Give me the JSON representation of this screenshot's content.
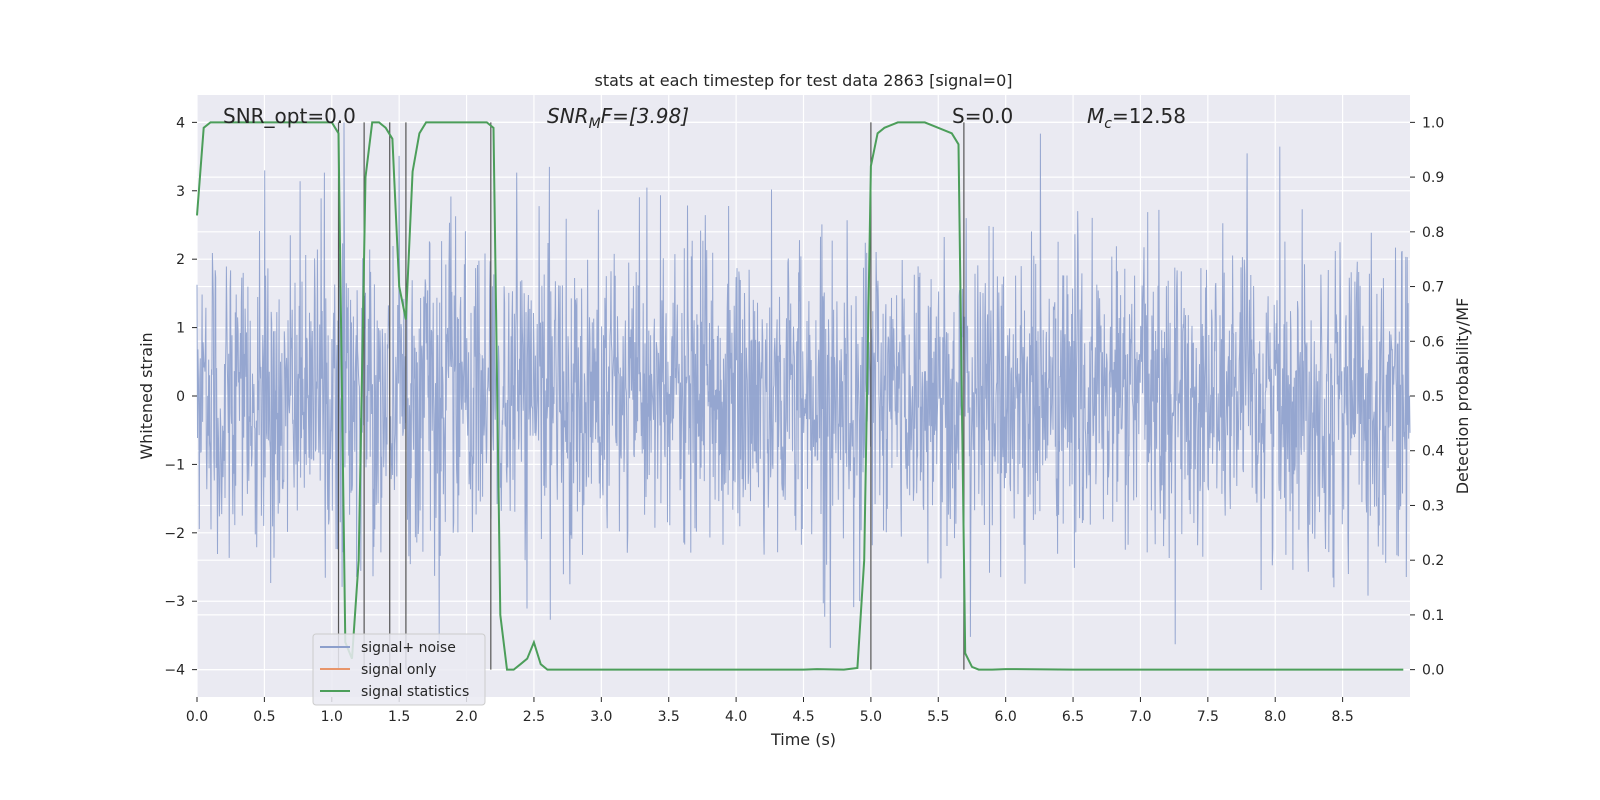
{
  "chart_data": {
    "type": "line",
    "title": "stats at each timestep for test data 2863 [signal=0]",
    "xlabel": "Time (s)",
    "ylabel_left": "Whitened strain",
    "ylabel_right": "Detection probability/MF",
    "xlim": [
      0.0,
      9.0
    ],
    "ylim_left": [
      -4.4,
      4.4
    ],
    "ylim_right": [
      -0.05,
      1.05
    ],
    "x_ticks": [
      "0.0",
      "0.5",
      "1.0",
      "1.5",
      "2.0",
      "2.5",
      "3.0",
      "3.5",
      "4.0",
      "4.5",
      "5.0",
      "5.5",
      "6.0",
      "6.5",
      "7.0",
      "7.5",
      "8.0",
      "8.5"
    ],
    "x_tick_values": [
      0.0,
      0.5,
      1.0,
      1.5,
      2.0,
      2.5,
      3.0,
      3.5,
      4.0,
      4.5,
      5.0,
      5.5,
      6.0,
      6.5,
      7.0,
      7.5,
      8.0,
      8.5
    ],
    "left_ticks": [
      "−4",
      "−3",
      "−2",
      "−1",
      "0",
      "1",
      "2",
      "3",
      "4"
    ],
    "left_tick_values": [
      -4,
      -3,
      -2,
      -1,
      0,
      1,
      2,
      3,
      4
    ],
    "right_ticks": [
      "0.0",
      "0.1",
      "0.2",
      "0.3",
      "0.4",
      "0.5",
      "0.6",
      "0.7",
      "0.8",
      "0.9",
      "1.0"
    ],
    "right_tick_values": [
      0.0,
      0.1,
      0.2,
      0.3,
      0.4,
      0.5,
      0.6,
      0.7,
      0.8,
      0.9,
      1.0
    ],
    "grid": true,
    "legend_position": "lower-left",
    "annotations": {
      "snr_opt": "SNR_opt=0.0",
      "snr_mf_main": "SNR",
      "snr_mf_sub": "M",
      "snr_mf_rest": "F=[3.98]",
      "s": "S=0.0",
      "mc_main": "M",
      "mc_sub": "c",
      "mc_rest": "=12.58"
    },
    "series": [
      {
        "name": "signal+ noise",
        "color": "#8c9fcc",
        "description_axis": "left",
        "amplitude_envelope": 2.4,
        "peak_max": 4.0,
        "peak_min": -4.0
      },
      {
        "name": "signal only",
        "color": "#e8956a",
        "description_axis": "left",
        "values": []
      },
      {
        "name": "signal statistics",
        "color": "#4c9e5a",
        "description_axis": "right",
        "x": [
          0.0,
          0.05,
          0.1,
          0.2,
          0.3,
          0.5,
          0.7,
          0.9,
          1.0,
          1.05,
          1.1,
          1.15,
          1.2,
          1.25,
          1.3,
          1.35,
          1.4,
          1.45,
          1.5,
          1.55,
          1.6,
          1.65,
          1.7,
          1.8,
          2.0,
          2.15,
          2.2,
          2.25,
          2.3,
          2.35,
          2.4,
          2.45,
          2.5,
          2.55,
          2.6,
          3.0,
          3.5,
          4.0,
          4.5,
          4.6,
          4.8,
          4.9,
          4.95,
          5.0,
          5.05,
          5.1,
          5.2,
          5.4,
          5.6,
          5.65,
          5.7,
          5.75,
          5.8,
          5.9,
          6.0,
          6.5,
          7.0,
          7.5,
          8.0,
          8.5,
          8.95
        ],
        "values": [
          0.83,
          0.99,
          1.0,
          1.0,
          1.0,
          1.0,
          1.0,
          1.0,
          1.0,
          0.98,
          0.05,
          0.02,
          0.2,
          0.9,
          1.0,
          1.0,
          0.99,
          0.97,
          0.7,
          0.64,
          0.91,
          0.98,
          1.0,
          1.0,
          1.0,
          1.0,
          0.99,
          0.1,
          0.0,
          0.0,
          0.01,
          0.02,
          0.05,
          0.01,
          0.0,
          0.0,
          0.0,
          0.0,
          0.0,
          0.001,
          0.0,
          0.003,
          0.2,
          0.92,
          0.98,
          0.99,
          1.0,
          1.0,
          0.98,
          0.96,
          0.03,
          0.005,
          0.0,
          0.0,
          0.001,
          0.0,
          0.0,
          0.0,
          0.0,
          0.0,
          0.0
        ]
      }
    ],
    "vertical_lines_x": [
      1.05,
      1.24,
      1.43,
      1.55,
      2.18,
      5.0,
      5.69
    ]
  }
}
